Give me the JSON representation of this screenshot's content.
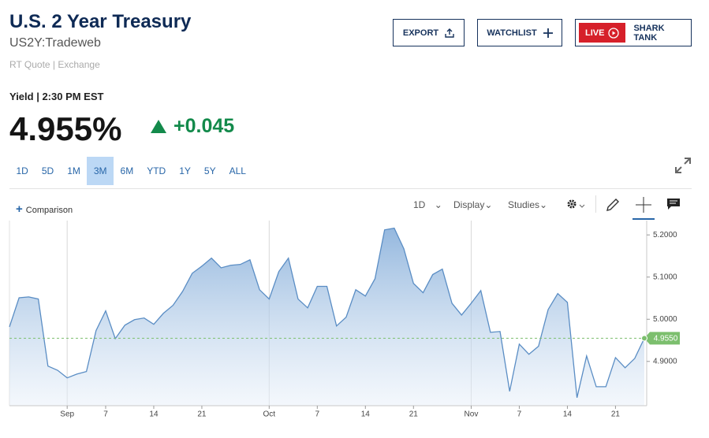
{
  "header": {
    "title": "U.S. 2 Year Treasury",
    "symbol": "US2Y:Tradeweb",
    "quote_source": "RT Quote | Exchange"
  },
  "buttons": {
    "export": "EXPORT",
    "watchlist": "WATCHLIST",
    "live_badge": "LIVE",
    "live_show": "SHARK TANK"
  },
  "quote": {
    "label": "Yield | 2:30 PM EST",
    "price": "4.955%",
    "change": "+0.045"
  },
  "ranges": [
    "1D",
    "5D",
    "1M",
    "3M",
    "6M",
    "YTD",
    "1Y",
    "5Y",
    "ALL"
  ],
  "selected_range": "3M",
  "toolbar": {
    "comparison": "Comparison",
    "interval": "1D",
    "display": "Display",
    "studies": "Studies"
  },
  "chart_data": {
    "type": "line",
    "color": "#5a8dc4",
    "categories": [
      null,
      null,
      null,
      null,
      null,
      null,
      "Sep",
      null,
      null,
      null,
      "7",
      null,
      null,
      null,
      null,
      "14",
      null,
      null,
      null,
      null,
      "21",
      null,
      null,
      null,
      null,
      null,
      null,
      "Oct",
      null,
      null,
      null,
      null,
      "7",
      null,
      null,
      null,
      null,
      "14",
      null,
      null,
      null,
      null,
      "21",
      null,
      null,
      null,
      null,
      null,
      "Nov",
      null,
      null,
      null,
      null,
      "7",
      null,
      null,
      null,
      null,
      "14",
      null,
      null,
      null,
      null,
      "21",
      null,
      null,
      null
    ],
    "values": [
      4.982,
      5.051,
      5.053,
      5.048,
      4.889,
      4.879,
      4.861,
      4.87,
      4.876,
      4.973,
      5.02,
      4.954,
      4.986,
      4.999,
      5.003,
      4.988,
      5.014,
      5.033,
      5.066,
      5.109,
      5.126,
      5.145,
      5.122,
      5.128,
      5.13,
      5.141,
      5.07,
      5.048,
      5.113,
      5.145,
      5.048,
      5.027,
      5.078,
      5.078,
      4.984,
      5.005,
      5.07,
      5.055,
      5.096,
      5.212,
      5.216,
      5.167,
      5.085,
      5.063,
      5.106,
      5.119,
      5.038,
      5.01,
      5.038,
      5.068,
      4.969,
      4.971,
      4.829,
      4.941,
      4.917,
      4.936,
      5.023,
      5.061,
      5.04,
      4.814,
      4.913,
      4.84,
      4.84,
      4.909,
      4.885,
      4.907,
      4.955
    ],
    "ylim": [
      4.795,
      5.234
    ],
    "yticks": [
      {
        "value": 4.9,
        "label": "4.9000"
      },
      {
        "value": 5.0,
        "label": "5.0000"
      },
      {
        "value": 5.1,
        "label": "5.1000"
      },
      {
        "value": 5.2,
        "label": "5.2000"
      }
    ],
    "current": {
      "value": 4.955,
      "label": "4.9550",
      "color": "#7cbf6e"
    }
  }
}
